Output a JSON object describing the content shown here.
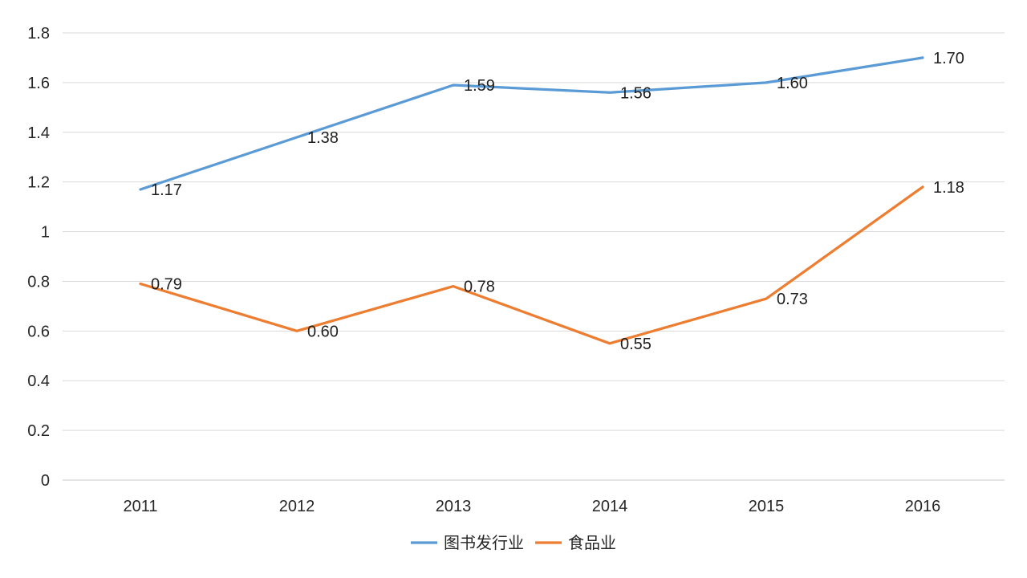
{
  "chart_data": {
    "type": "line",
    "title": "",
    "xlabel": "",
    "ylabel": "",
    "categories": [
      "2011",
      "2012",
      "2013",
      "2014",
      "2015",
      "2016"
    ],
    "series": [
      {
        "name": "图书发行业",
        "color": "#5B9BD5",
        "values": [
          1.17,
          1.38,
          1.59,
          1.56,
          1.6,
          1.7
        ],
        "labels": [
          "1.17",
          "1.38",
          "1.59",
          "1.56",
          "1.60",
          "1.70"
        ]
      },
      {
        "name": "食品业",
        "color": "#ED7D31",
        "values": [
          0.79,
          0.6,
          0.78,
          0.55,
          0.73,
          1.18
        ],
        "labels": [
          "0.79",
          "0.60",
          "0.78",
          "0.55",
          "0.73",
          "1.18"
        ]
      }
    ],
    "ylim": [
      0,
      1.8
    ],
    "ytick_step": 0.2,
    "ytick_labels": [
      "0",
      "0.2",
      "0.4",
      "0.6",
      "0.8",
      "1",
      "1.2",
      "1.4",
      "1.6",
      "1.8"
    ],
    "grid": true,
    "legend_position": "bottom",
    "colors": {
      "background": "#FFFFFF",
      "gridline": "#D9D9D9",
      "axis_line": "#C9C9C9",
      "tick_text": "#262626",
      "data_label_text": "#1F1F1F"
    }
  }
}
